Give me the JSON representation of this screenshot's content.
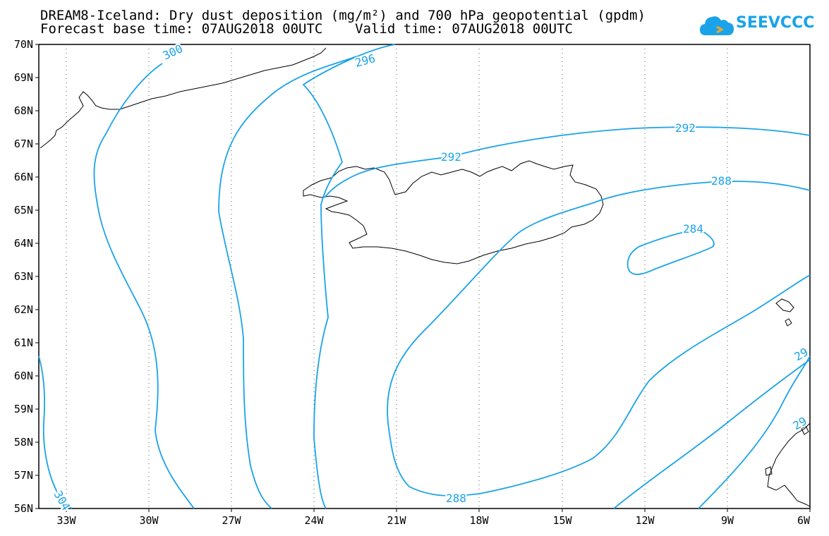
{
  "header": {
    "title_line1": "DREAM8-Iceland: Dry dust deposition (mg/m²) and 700 hPa geopotential (gpdm)",
    "title_line2": "Forecast base time: 07AUG2018 00UTC    Valid time: 07AUG2018 00UTC"
  },
  "logo": {
    "text": "SEEVCCC",
    "icon": "cloud-icon",
    "color": "#1aa3e8"
  },
  "map": {
    "lat_labels": [
      "70N",
      "69N",
      "68N",
      "67N",
      "66N",
      "65N",
      "64N",
      "63N",
      "62N",
      "61N",
      "60N",
      "59N",
      "58N",
      "57N",
      "56N"
    ],
    "lon_labels": [
      "33W",
      "30W",
      "27W",
      "24W",
      "21W",
      "18W",
      "15W",
      "12W",
      "9W",
      "6W"
    ],
    "contour_color": "#1aa3e8",
    "contour_labels": [
      "300",
      "296",
      "292",
      "292",
      "288",
      "284",
      "288",
      "304",
      "29",
      "29"
    ],
    "grid": true,
    "grid_style": "dotted"
  }
}
